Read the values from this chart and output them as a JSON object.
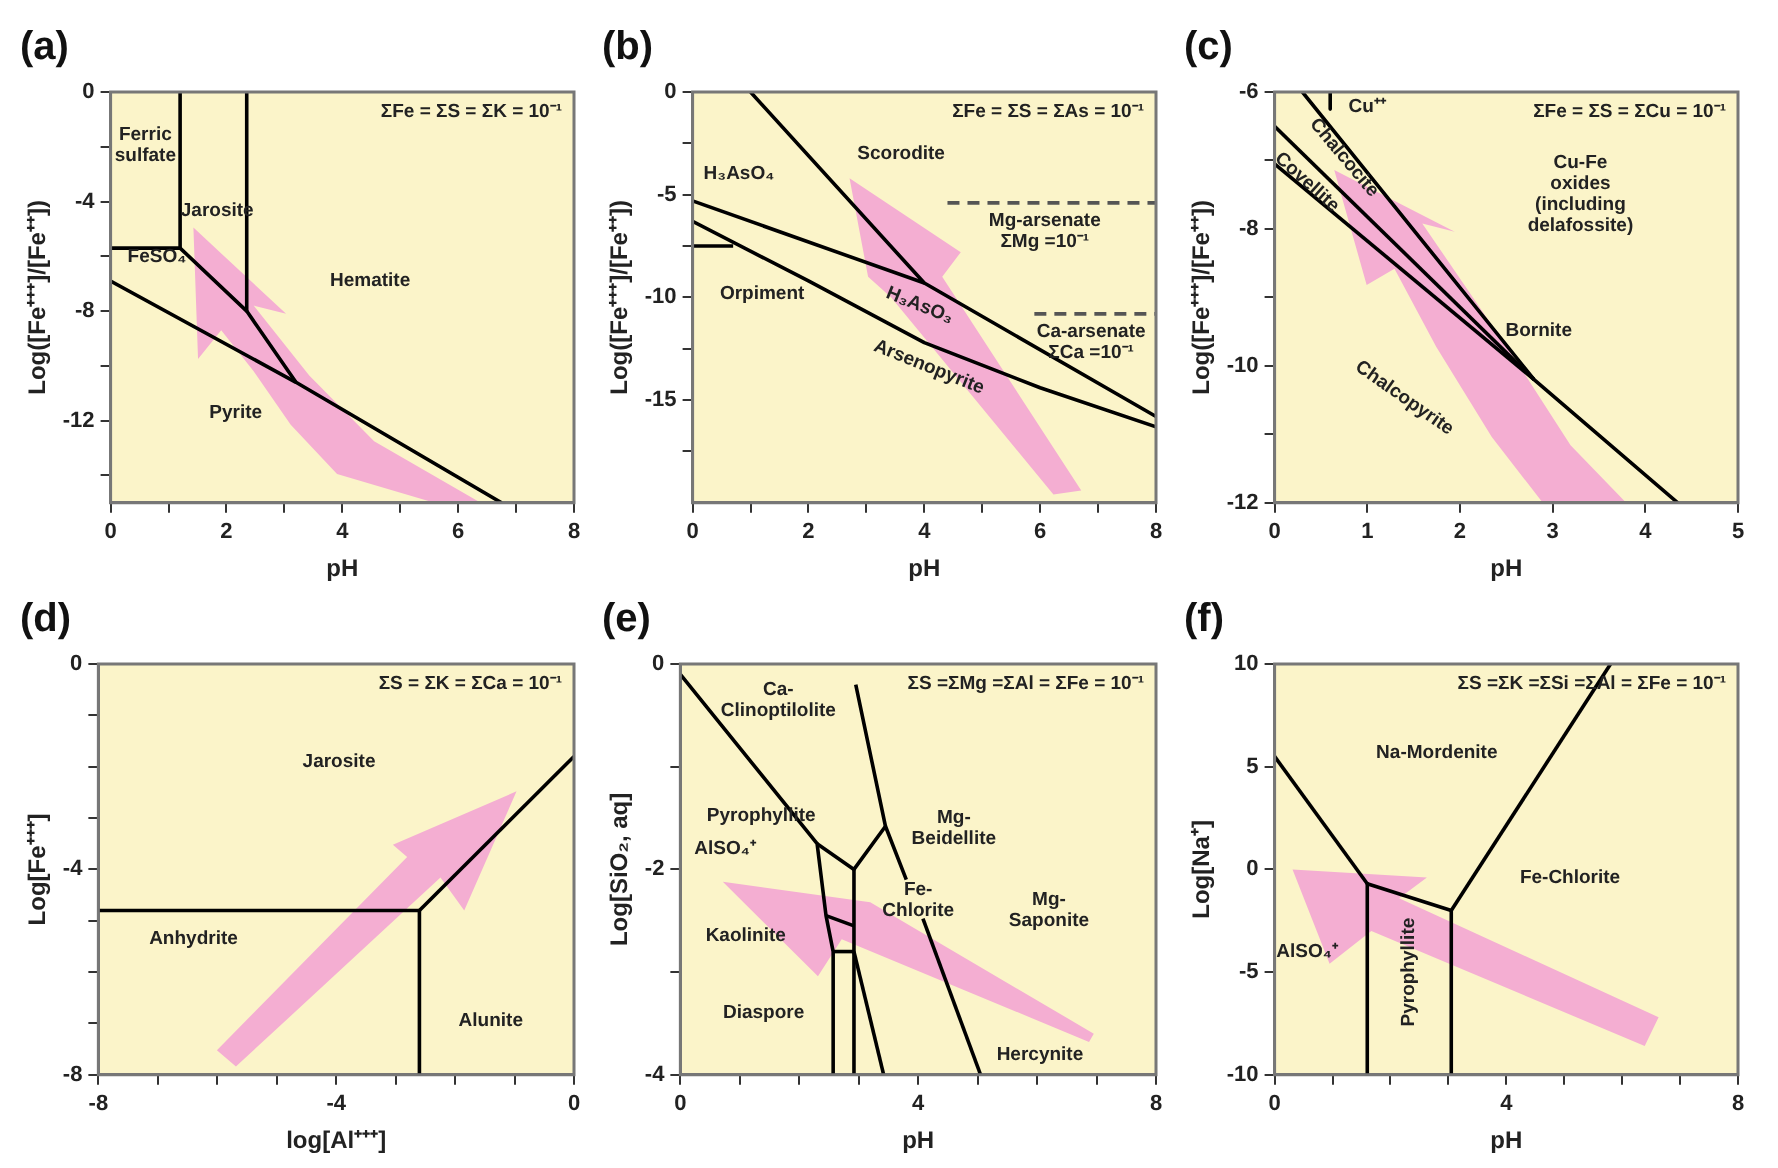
{
  "chart_data": [
    {
      "type": "line",
      "title": "(a)",
      "xlabel": "pH",
      "ylabel": "Log([Fe⁺⁺⁺]/[Fe⁺⁺])",
      "xlim": [
        0,
        8
      ],
      "ylim": [
        -15,
        0
      ],
      "marker": "none",
      "grid": false,
      "xticks": [
        0,
        {
          "value": 1,
          "label": null
        },
        2,
        {
          "value": 3,
          "label": null
        },
        4,
        {
          "value": 5,
          "label": null
        },
        6,
        {
          "value": 7,
          "label": null
        },
        8
      ],
      "yticks": [
        0,
        {
          "value": -2,
          "label": null
        },
        -4,
        {
          "value": -6,
          "label": null
        },
        -8,
        {
          "value": -10,
          "label": null
        },
        -12,
        {
          "value": -14,
          "label": null
        }
      ],
      "series": [
        {
          "color": "#000000",
          "x": [
            0,
            1.2,
            1.2
          ],
          "values": [
            -5.7,
            -5.7,
            0
          ]
        },
        {
          "color": "#000000",
          "x": [
            1.2,
            2.35,
            3.2
          ],
          "values": [
            -5.7,
            -8,
            -10.6
          ]
        },
        {
          "color": "#000000",
          "x": [
            2.35,
            2.35
          ],
          "values": [
            0,
            -8
          ]
        },
        {
          "color": "#000000",
          "x": [
            0,
            3.2,
            6.75
          ],
          "values": [
            -6.9,
            -10.6,
            -15
          ]
        }
      ],
      "annotations": [
        "ΣFe = ΣS = ΣK = 10⁻¹",
        "Ferric\nsulfate",
        "Jarosite",
        "FeSO₄",
        "Hematite",
        "Pyrite"
      ]
    },
    {
      "type": "line",
      "title": "(b)",
      "xlabel": "pH",
      "ylabel": "Log([Fe⁺⁺⁺]/[Fe⁺⁺])",
      "xlim": [
        0,
        8
      ],
      "ylim": [
        -20,
        0
      ],
      "marker": "none",
      "grid": false,
      "xticks": [
        0,
        {
          "value": 1,
          "label": null
        },
        2,
        {
          "value": 3,
          "label": null
        },
        4,
        {
          "value": 5,
          "label": null
        },
        6,
        {
          "value": 7,
          "label": null
        },
        8
      ],
      "yticks": [
        0,
        {
          "value": -2.5,
          "label": null
        },
        -5,
        {
          "value": -7.5,
          "label": null
        },
        -10,
        {
          "value": -12.5,
          "label": null
        },
        -15,
        {
          "value": -17.5,
          "label": null
        }
      ],
      "series": [
        {
          "color": "#000000",
          "x": [
            1,
            4,
            8
          ],
          "values": [
            0,
            -9.3,
            -15.8
          ]
        },
        {
          "color": "#000000",
          "x": [
            0,
            4
          ],
          "values": [
            -5.3,
            -9.3
          ]
        },
        {
          "color": "#000000",
          "x": [
            0,
            2,
            4,
            6,
            8
          ],
          "values": [
            -6.3,
            -9.2,
            -12.2,
            -14.4,
            -16.3
          ]
        },
        {
          "color": "#000000",
          "x": [
            0,
            0.7
          ],
          "values": [
            -7.5,
            -7.5
          ]
        },
        {
          "color": "#555555",
          "line_style": "dashed",
          "x": [
            4.4,
            8
          ],
          "values": [
            -5.4,
            -5.4
          ]
        },
        {
          "color": "#555555",
          "line_style": "dashed",
          "x": [
            5.9,
            8
          ],
          "values": [
            -10.8,
            -10.8
          ]
        }
      ],
      "annotations": [
        "ΣFe = ΣS = ΣAs = 10⁻¹",
        "Scorodite",
        "H₃AsO₄",
        "Orpiment",
        "H₃AsO₃",
        "Arsenopyrite",
        "Mg-arsenate\nΣMg =10⁻¹",
        "Ca-arsenate\nΣCa =10⁻¹"
      ]
    },
    {
      "type": "line",
      "title": "(c)",
      "xlabel": "pH",
      "ylabel": "Log([Fe⁺⁺⁺]/[Fe⁺⁺])",
      "xlim": [
        0,
        5
      ],
      "ylim": [
        -12,
        -6
      ],
      "marker": "none",
      "grid": false,
      "xticks": [
        0,
        1,
        2,
        3,
        4,
        5
      ],
      "yticks": [
        -6,
        {
          "value": -7,
          "label": null
        },
        -8,
        {
          "value": -9,
          "label": null
        },
        -10,
        {
          "value": -11,
          "label": null
        },
        -12
      ],
      "series": [
        {
          "color": "#000000",
          "x": [
            0.3,
            2.8,
            4.35
          ],
          "values": [
            -6,
            -10.2,
            -12
          ]
        },
        {
          "color": "#000000",
          "x": [
            0,
            2.8
          ],
          "values": [
            -6.5,
            -10.2
          ]
        },
        {
          "color": "#000000",
          "x": [
            0,
            2.8
          ],
          "values": [
            -7.05,
            -10.2
          ]
        },
        {
          "color": "#000000",
          "x": [
            0.6,
            0.6
          ],
          "values": [
            -6,
            -6.25
          ]
        }
      ],
      "annotations": [
        "ΣFe = ΣS = ΣCu = 10⁻¹",
        "Cu⁺⁺",
        "Chalcocite",
        "Covellite",
        "Cu-Fe\noxides\n(including\ndelafossite)",
        "Bornite",
        "Chalcopyrite"
      ]
    },
    {
      "type": "line",
      "title": "(d)",
      "xlabel": "log[Al⁺⁺⁺]",
      "ylabel": "Log[Fe⁺⁺⁺]",
      "xlim": [
        -8,
        0
      ],
      "ylim": [
        -8,
        0
      ],
      "marker": "none",
      "grid": false,
      "xticks": [
        -8,
        {
          "value": -7,
          "label": null
        },
        {
          "value": -6,
          "label": null
        },
        {
          "value": -5,
          "label": null
        },
        -4,
        {
          "value": -3,
          "label": null
        },
        {
          "value": -2,
          "label": null
        },
        {
          "value": -1,
          "label": null
        },
        0
      ],
      "yticks": [
        0,
        {
          "value": -1,
          "label": null
        },
        {
          "value": -2,
          "label": null
        },
        {
          "value": -3,
          "label": null
        },
        -4,
        {
          "value": -5,
          "label": null
        },
        {
          "value": -6,
          "label": null
        },
        {
          "value": -7,
          "label": null
        },
        -8
      ],
      "series": [
        {
          "color": "#000000",
          "x": [
            -8,
            -2.6
          ],
          "values": [
            -4.8,
            -4.8
          ]
        },
        {
          "color": "#000000",
          "x": [
            -2.6,
            -2.6
          ],
          "values": [
            -4.8,
            -8
          ]
        },
        {
          "color": "#000000",
          "x": [
            -2.6,
            0
          ],
          "values": [
            -4.8,
            -1.8
          ]
        }
      ],
      "annotations": [
        "ΣS = ΣK = ΣCa = 10⁻¹",
        "Jarosite",
        "Anhydrite",
        "Alunite"
      ]
    },
    {
      "type": "line",
      "title": "(e)",
      "xlabel": "pH",
      "ylabel": "Log[SiO₂, aq]",
      "xlim": [
        0,
        8
      ],
      "ylim": [
        -4,
        0
      ],
      "marker": "none",
      "grid": false,
      "xticks": [
        0,
        {
          "value": 1,
          "label": null
        },
        {
          "value": 2,
          "label": null
        },
        {
          "value": 3,
          "label": null
        },
        4,
        {
          "value": 5,
          "label": null
        },
        {
          "value": 6,
          "label": null
        },
        {
          "value": 7,
          "label": null
        },
        8
      ],
      "yticks": [
        0,
        {
          "value": -1,
          "label": null
        },
        -2,
        {
          "value": -3,
          "label": null
        },
        -4
      ],
      "series": [
        {
          "color": "#000000",
          "x": [
            0,
            2.3,
            2.45,
            2.57,
            2.57
          ],
          "values": [
            -0.1,
            -1.75,
            -2.45,
            -2.8,
            -4
          ]
        },
        {
          "color": "#000000",
          "x": [
            2.3,
            2.92,
            3.45
          ],
          "values": [
            -1.75,
            -2.0,
            -1.58
          ]
        },
        {
          "color": "#000000",
          "x": [
            2.95,
            3.45,
            3.8
          ],
          "values": [
            -0.2,
            -1.58,
            -2.1
          ]
        },
        {
          "color": "#000000",
          "x": [
            2.92,
            2.92
          ],
          "values": [
            -2.0,
            -4
          ]
        },
        {
          "color": "#000000",
          "x": [
            2.45,
            2.92
          ],
          "values": [
            -2.45,
            -2.55
          ]
        },
        {
          "color": "#000000",
          "x": [
            2.57,
            2.92
          ],
          "values": [
            -2.8,
            -2.8
          ]
        },
        {
          "color": "#000000",
          "x": [
            2.92,
            3.42
          ],
          "values": [
            -2.8,
            -4
          ]
        },
        {
          "color": "#000000",
          "x": [
            4.08,
            5.05
          ],
          "values": [
            -2.48,
            -4
          ]
        }
      ],
      "annotations": [
        "ΣS =ΣMg =ΣAl = ΣFe = 10⁻¹",
        "Ca-\nClinoptilolite",
        "Pyrophyllite",
        "AlSO₄⁺",
        "Mg-\nBeidellite",
        "Fe-\nChlorite",
        "Mg-\nSaponite",
        "Kaolinite",
        "Diaspore",
        "Hercynite"
      ]
    },
    {
      "type": "line",
      "title": "(f)",
      "xlabel": "pH",
      "ylabel": "Log[Na⁺]",
      "xlim": [
        0,
        8
      ],
      "ylim": [
        -10,
        10
      ],
      "marker": "none",
      "grid": false,
      "xticks": [
        0,
        {
          "value": 1,
          "label": null
        },
        {
          "value": 2,
          "label": null
        },
        {
          "value": 3,
          "label": null
        },
        4,
        {
          "value": 5,
          "label": null
        },
        {
          "value": 6,
          "label": null
        },
        {
          "value": 7,
          "label": null
        },
        8
      ],
      "yticks": [
        10,
        5,
        0,
        -5,
        -10
      ],
      "series": [
        {
          "color": "#000000",
          "x": [
            0,
            1.6
          ],
          "values": [
            5.5,
            -0.7
          ]
        },
        {
          "color": "#000000",
          "x": [
            1.6,
            3.05
          ],
          "values": [
            -0.7,
            -2.0
          ]
        },
        {
          "color": "#000000",
          "x": [
            3.05,
            5.8
          ],
          "values": [
            -2.0,
            10
          ]
        },
        {
          "color": "#000000",
          "x": [
            1.6,
            1.6
          ],
          "values": [
            -0.7,
            -10
          ]
        },
        {
          "color": "#000000",
          "x": [
            3.05,
            3.05
          ],
          "values": [
            -2.0,
            -10
          ]
        }
      ],
      "annotations": [
        "ΣS =ΣK =ΣSi =ΣAl = ΣFe = 10⁻¹",
        "Na-Mordenite",
        "Fe-Chlorite",
        "AlSO₄⁺",
        "Pyrophyllite"
      ]
    }
  ]
}
